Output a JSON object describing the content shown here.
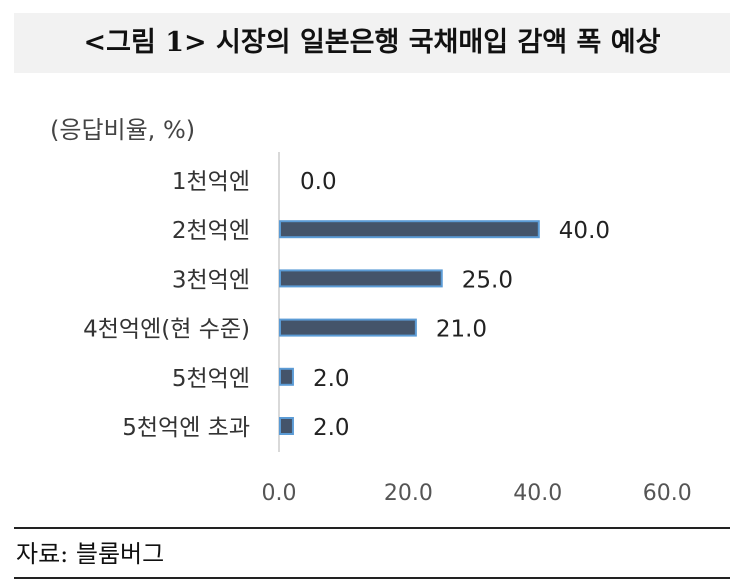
{
  "title": "<그림 1> 시장의 일본은행 국채매입 감액 폭 예상",
  "unit_label": "(응답비율, %)",
  "source": "자료: 블룸버그",
  "colors": {
    "bar": "#44546a",
    "bar_edge": "#5b9bd5",
    "axis": "#d9d9d9"
  },
  "chart_data": {
    "type": "bar",
    "orientation": "horizontal",
    "categories": [
      "1천억엔",
      "2천억엔",
      "3천억엔",
      "4천억엔(현 수준)",
      "5천억엔",
      "5천억엔 초과"
    ],
    "values": [
      0.0,
      40.0,
      25.0,
      21.0,
      2.0,
      2.0
    ],
    "value_labels": [
      "0.0",
      "40.0",
      "25.0",
      "21.0",
      "2.0",
      "2.0"
    ],
    "xlim": [
      0,
      60
    ],
    "xticks": [
      "0.0",
      "20.0",
      "40.0",
      "60.0"
    ],
    "xtick_values": [
      0,
      20,
      40,
      60
    ],
    "grid": false,
    "legend": "none"
  }
}
